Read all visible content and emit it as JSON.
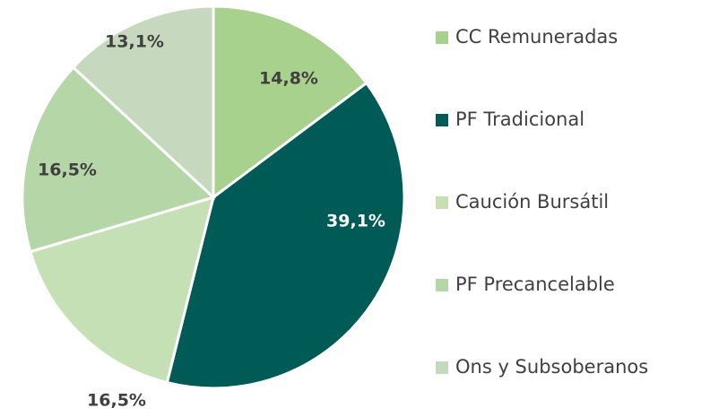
{
  "chart_data": {
    "type": "pie",
    "categories": [
      "CC Remuneradas",
      "PF Tradicional",
      "Caución Bursátil",
      "PF Precancelable",
      "Ons y Subsoberanos"
    ],
    "values": [
      14.8,
      39.1,
      16.5,
      16.5,
      13.1
    ],
    "value_labels": [
      "14,8%",
      "39,1%",
      "16,5%",
      "16,5%",
      "13,1%"
    ],
    "colors": [
      "#a9d18e",
      "#005a55",
      "#c5e0b4",
      "#b5d6a7",
      "#c6d9bf"
    ],
    "legend": "right"
  }
}
